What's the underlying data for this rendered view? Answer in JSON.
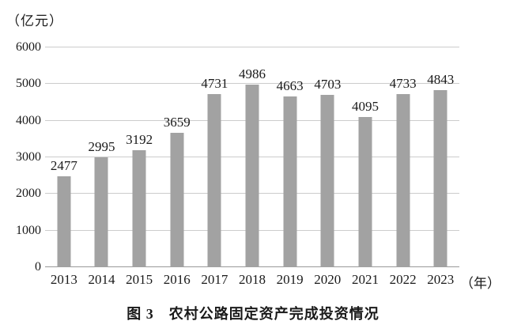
{
  "page": {
    "background": "#ffffff",
    "text_color": "#1a1a1a"
  },
  "chart_data": {
    "type": "bar",
    "title": "图 3　农村公路固定资产完成投资情况",
    "xlabel": "（年）",
    "ylabel": "（亿元）",
    "categories": [
      "2013",
      "2014",
      "2015",
      "2016",
      "2017",
      "2018",
      "2019",
      "2020",
      "2021",
      "2022",
      "2023"
    ],
    "values": [
      2477,
      2995,
      3192,
      3659,
      4731,
      4986,
      4663,
      4703,
      4095,
      4733,
      4843
    ],
    "ylim": [
      0,
      6000
    ],
    "yticks": [
      0,
      1000,
      2000,
      3000,
      4000,
      5000,
      6000
    ],
    "grid": "horizontal",
    "legend": "none",
    "bar_color": "#a2a2a2",
    "gridline_color": "#cccccc",
    "axis_color": "#999999"
  }
}
